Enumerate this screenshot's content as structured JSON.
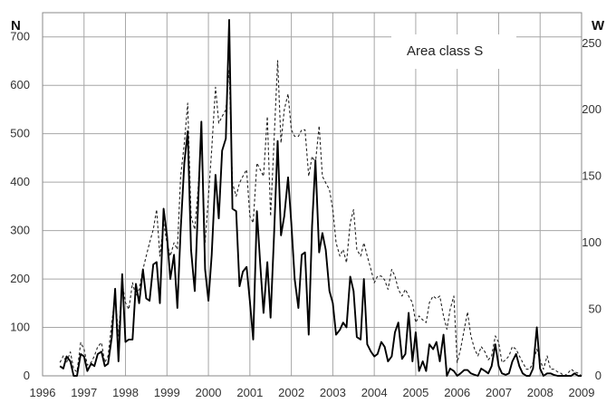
{
  "chart_data": {
    "type": "line",
    "annotation": "Area class S",
    "left_axis_label": "N",
    "right_axis_label": "W",
    "x_ticks": [
      "1996",
      "1997",
      "1998",
      "1999",
      "2000",
      "2001",
      "2002",
      "2003",
      "2004",
      "2005",
      "2006",
      "2007",
      "2008",
      "2009"
    ],
    "xlim": [
      1996,
      2009
    ],
    "left_ylim": [
      0,
      750
    ],
    "left_ticks": [
      "0",
      "100",
      "200",
      "300",
      "400",
      "500",
      "600",
      "700"
    ],
    "right_ylim": [
      0,
      273
    ],
    "right_ticks": [
      "0",
      "50",
      "100",
      "150",
      "200",
      "250"
    ],
    "grid": true,
    "series": [
      {
        "style": "solid",
        "axis": "left",
        "color": "#000000",
        "points": [
          [
            1996.42,
            20
          ],
          [
            1996.5,
            15
          ],
          [
            1996.58,
            40
          ],
          [
            1996.67,
            30
          ],
          [
            1996.75,
            0
          ],
          [
            1996.83,
            0
          ],
          [
            1996.92,
            45
          ],
          [
            1997.0,
            40
          ],
          [
            1997.08,
            10
          ],
          [
            1997.17,
            25
          ],
          [
            1997.25,
            20
          ],
          [
            1997.33,
            45
          ],
          [
            1997.42,
            50
          ],
          [
            1997.5,
            20
          ],
          [
            1997.58,
            25
          ],
          [
            1997.67,
            80
          ],
          [
            1997.75,
            180
          ],
          [
            1997.83,
            30
          ],
          [
            1997.92,
            210
          ],
          [
            1998.0,
            70
          ],
          [
            1998.08,
            75
          ],
          [
            1998.17,
            75
          ],
          [
            1998.25,
            190
          ],
          [
            1998.33,
            150
          ],
          [
            1998.42,
            220
          ],
          [
            1998.5,
            160
          ],
          [
            1998.58,
            155
          ],
          [
            1998.67,
            230
          ],
          [
            1998.75,
            235
          ],
          [
            1998.83,
            150
          ],
          [
            1998.92,
            345
          ],
          [
            1999.0,
            290
          ],
          [
            1999.08,
            200
          ],
          [
            1999.17,
            250
          ],
          [
            1999.25,
            140
          ],
          [
            1999.33,
            300
          ],
          [
            1999.42,
            440
          ],
          [
            1999.5,
            505
          ],
          [
            1999.58,
            260
          ],
          [
            1999.67,
            175
          ],
          [
            1999.75,
            350
          ],
          [
            1999.83,
            525
          ],
          [
            1999.92,
            220
          ],
          [
            2000.0,
            155
          ],
          [
            2000.08,
            250
          ],
          [
            2000.17,
            415
          ],
          [
            2000.25,
            325
          ],
          [
            2000.33,
            465
          ],
          [
            2000.42,
            490
          ],
          [
            2000.5,
            735
          ],
          [
            2000.58,
            345
          ],
          [
            2000.67,
            340
          ],
          [
            2000.75,
            185
          ],
          [
            2000.83,
            215
          ],
          [
            2000.92,
            225
          ],
          [
            2001.0,
            155
          ],
          [
            2001.08,
            75
          ],
          [
            2001.17,
            340
          ],
          [
            2001.25,
            230
          ],
          [
            2001.33,
            130
          ],
          [
            2001.42,
            235
          ],
          [
            2001.5,
            120
          ],
          [
            2001.58,
            285
          ],
          [
            2001.67,
            485
          ],
          [
            2001.75,
            290
          ],
          [
            2001.83,
            330
          ],
          [
            2001.92,
            410
          ],
          [
            2002.0,
            315
          ],
          [
            2002.08,
            200
          ],
          [
            2002.17,
            140
          ],
          [
            2002.25,
            250
          ],
          [
            2002.33,
            255
          ],
          [
            2002.42,
            85
          ],
          [
            2002.5,
            310
          ],
          [
            2002.58,
            445
          ],
          [
            2002.67,
            255
          ],
          [
            2002.75,
            295
          ],
          [
            2002.83,
            260
          ],
          [
            2002.92,
            175
          ],
          [
            2003.0,
            150
          ],
          [
            2003.08,
            85
          ],
          [
            2003.17,
            95
          ],
          [
            2003.25,
            110
          ],
          [
            2003.33,
            100
          ],
          [
            2003.42,
            205
          ],
          [
            2003.5,
            175
          ],
          [
            2003.58,
            80
          ],
          [
            2003.67,
            75
          ],
          [
            2003.75,
            200
          ],
          [
            2003.83,
            65
          ],
          [
            2003.92,
            50
          ],
          [
            2004.0,
            40
          ],
          [
            2004.08,
            45
          ],
          [
            2004.17,
            70
          ],
          [
            2004.25,
            60
          ],
          [
            2004.33,
            30
          ],
          [
            2004.42,
            40
          ],
          [
            2004.5,
            90
          ],
          [
            2004.58,
            110
          ],
          [
            2004.67,
            35
          ],
          [
            2004.75,
            45
          ],
          [
            2004.83,
            130
          ],
          [
            2004.92,
            30
          ],
          [
            2005.0,
            90
          ],
          [
            2005.08,
            10
          ],
          [
            2005.17,
            30
          ],
          [
            2005.25,
            10
          ],
          [
            2005.33,
            65
          ],
          [
            2005.42,
            55
          ],
          [
            2005.5,
            70
          ],
          [
            2005.58,
            30
          ],
          [
            2005.67,
            85
          ],
          [
            2005.75,
            0
          ],
          [
            2005.83,
            15
          ],
          [
            2005.92,
            10
          ],
          [
            2006.0,
            0
          ],
          [
            2006.08,
            5
          ],
          [
            2006.17,
            12
          ],
          [
            2006.25,
            12
          ],
          [
            2006.33,
            5
          ],
          [
            2006.42,
            2
          ],
          [
            2006.5,
            0
          ],
          [
            2006.58,
            15
          ],
          [
            2006.67,
            10
          ],
          [
            2006.75,
            5
          ],
          [
            2006.83,
            20
          ],
          [
            2006.92,
            65
          ],
          [
            2007.0,
            20
          ],
          [
            2007.08,
            5
          ],
          [
            2007.17,
            2
          ],
          [
            2007.25,
            5
          ],
          [
            2007.33,
            30
          ],
          [
            2007.42,
            45
          ],
          [
            2007.5,
            20
          ],
          [
            2007.58,
            5
          ],
          [
            2007.67,
            0
          ],
          [
            2007.75,
            0
          ],
          [
            2007.83,
            15
          ],
          [
            2007.92,
            100
          ],
          [
            2008.0,
            15
          ],
          [
            2008.08,
            0
          ],
          [
            2008.17,
            5
          ],
          [
            2008.25,
            5
          ],
          [
            2008.33,
            2
          ],
          [
            2008.42,
            0
          ],
          [
            2008.5,
            0
          ],
          [
            2008.58,
            0
          ],
          [
            2008.67,
            0
          ],
          [
            2008.75,
            0
          ],
          [
            2008.83,
            5
          ],
          [
            2008.92,
            0
          ],
          [
            2009.0,
            0
          ]
        ]
      },
      {
        "style": "dashed",
        "axis": "right",
        "color": "#222222",
        "points": [
          [
            1996.42,
            10
          ],
          [
            1996.5,
            15
          ],
          [
            1996.58,
            10
          ],
          [
            1996.67,
            18
          ],
          [
            1996.75,
            5
          ],
          [
            1996.83,
            3
          ],
          [
            1996.92,
            25
          ],
          [
            1997.0,
            20
          ],
          [
            1997.08,
            8
          ],
          [
            1997.17,
            10
          ],
          [
            1997.25,
            15
          ],
          [
            1997.33,
            22
          ],
          [
            1997.42,
            25
          ],
          [
            1997.5,
            10
          ],
          [
            1997.58,
            15
          ],
          [
            1997.67,
            40
          ],
          [
            1997.75,
            60
          ],
          [
            1997.83,
            30
          ],
          [
            1997.92,
            70
          ],
          [
            1998.0,
            55
          ],
          [
            1998.08,
            50
          ],
          [
            1998.17,
            70
          ],
          [
            1998.25,
            60
          ],
          [
            1998.33,
            65
          ],
          [
            1998.42,
            80
          ],
          [
            1998.5,
            90
          ],
          [
            1998.58,
            100
          ],
          [
            1998.67,
            110
          ],
          [
            1998.75,
            125
          ],
          [
            1998.83,
            90
          ],
          [
            1998.92,
            115
          ],
          [
            1999.0,
            100
          ],
          [
            1999.08,
            90
          ],
          [
            1999.17,
            100
          ],
          [
            1999.25,
            95
          ],
          [
            1999.33,
            150
          ],
          [
            1999.42,
            175
          ],
          [
            1999.5,
            205
          ],
          [
            1999.58,
            120
          ],
          [
            1999.67,
            110
          ],
          [
            1999.75,
            140
          ],
          [
            1999.83,
            180
          ],
          [
            1999.92,
            100
          ],
          [
            2000.0,
            135
          ],
          [
            2000.08,
            170
          ],
          [
            2000.17,
            217
          ],
          [
            2000.25,
            190
          ],
          [
            2000.33,
            195
          ],
          [
            2000.42,
            200
          ],
          [
            2000.5,
            230
          ],
          [
            2000.58,
            145
          ],
          [
            2000.67,
            135
          ],
          [
            2000.75,
            145
          ],
          [
            2000.83,
            150
          ],
          [
            2000.92,
            155
          ],
          [
            2001.0,
            120
          ],
          [
            2001.08,
            115
          ],
          [
            2001.17,
            160
          ],
          [
            2001.25,
            155
          ],
          [
            2001.33,
            150
          ],
          [
            2001.42,
            195
          ],
          [
            2001.5,
            120
          ],
          [
            2001.58,
            175
          ],
          [
            2001.67,
            237
          ],
          [
            2001.75,
            175
          ],
          [
            2001.83,
            200
          ],
          [
            2001.92,
            212
          ],
          [
            2002.0,
            185
          ],
          [
            2002.08,
            180
          ],
          [
            2002.17,
            180
          ],
          [
            2002.25,
            185
          ],
          [
            2002.33,
            185
          ],
          [
            2002.42,
            150
          ],
          [
            2002.5,
            165
          ],
          [
            2002.58,
            160
          ],
          [
            2002.67,
            188
          ],
          [
            2002.75,
            150
          ],
          [
            2002.83,
            145
          ],
          [
            2002.92,
            140
          ],
          [
            2003.0,
            125
          ],
          [
            2003.08,
            100
          ],
          [
            2003.17,
            90
          ],
          [
            2003.25,
            95
          ],
          [
            2003.33,
            85
          ],
          [
            2003.42,
            115
          ],
          [
            2003.5,
            125
          ],
          [
            2003.58,
            95
          ],
          [
            2003.67,
            90
          ],
          [
            2003.75,
            100
          ],
          [
            2003.83,
            90
          ],
          [
            2003.92,
            80
          ],
          [
            2004.0,
            70
          ],
          [
            2004.08,
            75
          ],
          [
            2004.17,
            75
          ],
          [
            2004.25,
            72
          ],
          [
            2004.33,
            65
          ],
          [
            2004.42,
            80
          ],
          [
            2004.5,
            75
          ],
          [
            2004.58,
            65
          ],
          [
            2004.67,
            60
          ],
          [
            2004.75,
            65
          ],
          [
            2004.83,
            60
          ],
          [
            2004.92,
            55
          ],
          [
            2005.0,
            40
          ],
          [
            2005.08,
            45
          ],
          [
            2005.17,
            42
          ],
          [
            2005.25,
            40
          ],
          [
            2005.33,
            55
          ],
          [
            2005.42,
            60
          ],
          [
            2005.5,
            58
          ],
          [
            2005.58,
            60
          ],
          [
            2005.67,
            45
          ],
          [
            2005.75,
            35
          ],
          [
            2005.83,
            50
          ],
          [
            2005.92,
            60
          ],
          [
            2006.0,
            10
          ],
          [
            2006.08,
            20
          ],
          [
            2006.17,
            35
          ],
          [
            2006.25,
            48
          ],
          [
            2006.33,
            30
          ],
          [
            2006.42,
            20
          ],
          [
            2006.5,
            15
          ],
          [
            2006.58,
            22
          ],
          [
            2006.67,
            18
          ],
          [
            2006.75,
            12
          ],
          [
            2006.83,
            15
          ],
          [
            2006.92,
            30
          ],
          [
            2007.0,
            25
          ],
          [
            2007.08,
            10
          ],
          [
            2007.17,
            12
          ],
          [
            2007.25,
            15
          ],
          [
            2007.33,
            22
          ],
          [
            2007.42,
            20
          ],
          [
            2007.5,
            15
          ],
          [
            2007.58,
            10
          ],
          [
            2007.67,
            5
          ],
          [
            2007.75,
            5
          ],
          [
            2007.83,
            10
          ],
          [
            2007.92,
            20
          ],
          [
            2008.0,
            12
          ],
          [
            2008.08,
            5
          ],
          [
            2008.17,
            15
          ],
          [
            2008.25,
            5
          ],
          [
            2008.33,
            5
          ],
          [
            2008.42,
            3
          ],
          [
            2008.5,
            2
          ],
          [
            2008.58,
            0
          ],
          [
            2008.67,
            2
          ],
          [
            2008.75,
            5
          ],
          [
            2008.83,
            3
          ],
          [
            2008.92,
            2
          ],
          [
            2009.0,
            0
          ]
        ]
      }
    ]
  }
}
